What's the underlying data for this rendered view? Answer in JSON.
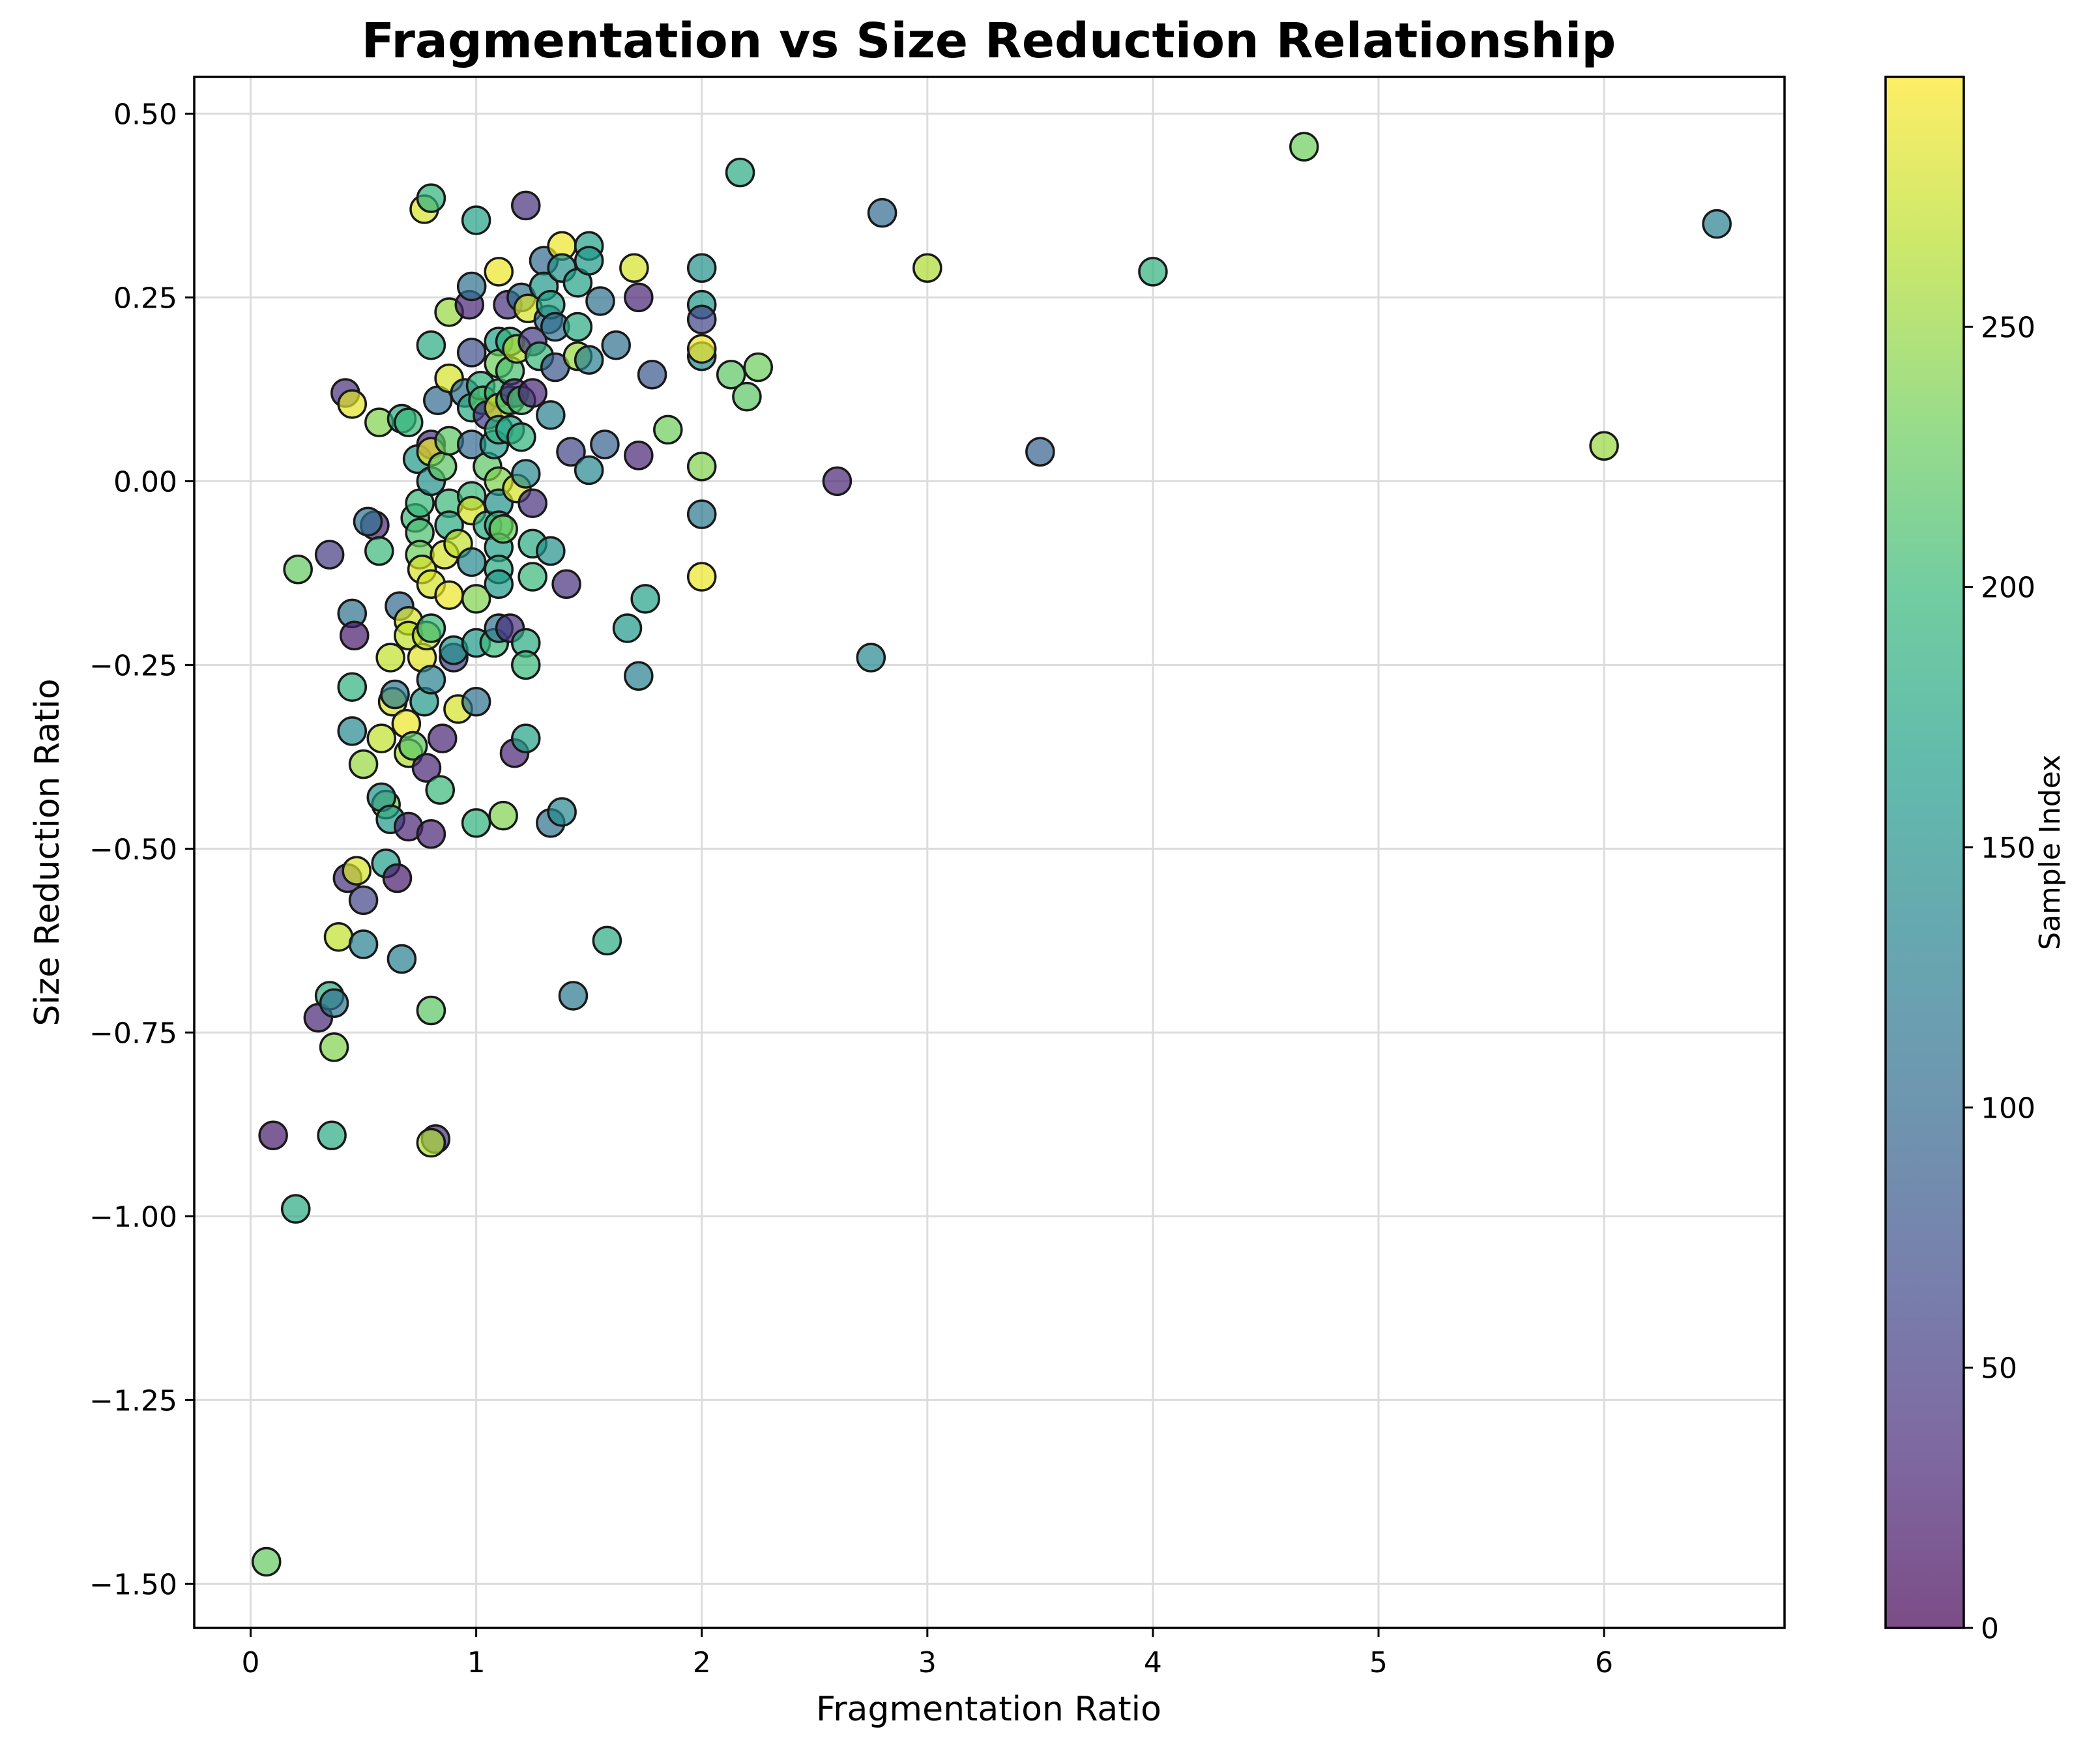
{
  "chart_data": {
    "type": "scatter",
    "title": "Fragmentation vs Size Reduction Relationship",
    "xlabel": "Fragmentation Ratio",
    "ylabel": "Size Reduction Ratio",
    "xlim": [
      -0.25,
      6.8
    ],
    "ylim": [
      -1.56,
      0.55
    ],
    "xticks": [
      0,
      1,
      2,
      3,
      4,
      5,
      6
    ],
    "xtick_labels": [
      "0",
      "1",
      "2",
      "3",
      "4",
      "5",
      "6"
    ],
    "yticks": [
      0.5,
      0.25,
      0.0,
      -0.25,
      -0.5,
      -0.75,
      -1.0,
      -1.25,
      -1.5
    ],
    "ytick_labels": [
      "0.50",
      "0.25",
      "0.00",
      "−0.25",
      "−0.50",
      "−0.75",
      "−1.00",
      "−1.25",
      "−1.50"
    ],
    "grid": true,
    "colormap": "viridis",
    "colormap_stops": [
      "#440154",
      "#482878",
      "#3e4989",
      "#31688e",
      "#26828e",
      "#1f9e89",
      "#35b779",
      "#6ece58",
      "#b5de2b",
      "#fde725"
    ],
    "colorbar": {
      "label": "Sample Index",
      "range": [
        0,
        298
      ],
      "ticks": [
        0,
        50,
        100,
        150,
        200,
        250
      ],
      "tick_labels": [
        "0",
        "50",
        "100",
        "150",
        "200",
        "250"
      ]
    },
    "point_fields": [
      "fragmentation_ratio",
      "size_reduction_ratio",
      "sample_index"
    ],
    "points": [
      [
        0.07,
        -1.47,
        225
      ],
      [
        0.1,
        -0.89,
        20
      ],
      [
        0.2,
        -0.99,
        180
      ],
      [
        0.21,
        -0.12,
        225
      ],
      [
        0.3,
        -0.73,
        30
      ],
      [
        0.35,
        -0.7,
        185
      ],
      [
        0.36,
        -0.89,
        180
      ],
      [
        0.37,
        -0.71,
        110
      ],
      [
        0.37,
        -0.77,
        240
      ],
      [
        0.39,
        -0.62,
        270
      ],
      [
        0.35,
        -0.1,
        50
      ],
      [
        0.42,
        0.12,
        40
      ],
      [
        0.45,
        0.105,
        285
      ],
      [
        0.45,
        -0.18,
        110
      ],
      [
        0.46,
        -0.21,
        20
      ],
      [
        0.45,
        -0.34,
        140
      ],
      [
        0.45,
        -0.28,
        190
      ],
      [
        0.43,
        -0.54,
        40
      ],
      [
        0.47,
        -0.53,
        280
      ],
      [
        0.5,
        -0.57,
        60
      ],
      [
        0.5,
        -0.63,
        130
      ],
      [
        0.5,
        -0.385,
        250
      ],
      [
        0.55,
        -0.06,
        30
      ],
      [
        0.52,
        -0.055,
        110
      ],
      [
        0.57,
        -0.095,
        200
      ],
      [
        0.57,
        0.08,
        240
      ],
      [
        0.58,
        -0.35,
        270
      ],
      [
        0.6,
        -0.44,
        240
      ],
      [
        0.58,
        -0.43,
        150
      ],
      [
        0.6,
        -0.52,
        165
      ],
      [
        0.62,
        -0.46,
        160
      ],
      [
        0.65,
        -0.54,
        20
      ],
      [
        0.63,
        -0.3,
        280
      ],
      [
        0.62,
        -0.24,
        270
      ],
      [
        0.64,
        -0.29,
        120
      ],
      [
        0.66,
        -0.17,
        100
      ],
      [
        0.67,
        -0.65,
        130
      ],
      [
        0.67,
        0.085,
        180
      ],
      [
        0.7,
        0.08,
        200
      ],
      [
        0.7,
        -0.19,
        280
      ],
      [
        0.7,
        -0.21,
        270
      ],
      [
        0.69,
        -0.33,
        290
      ],
      [
        0.7,
        -0.37,
        260
      ],
      [
        0.72,
        -0.36,
        220
      ],
      [
        0.7,
        -0.47,
        30
      ],
      [
        0.73,
        -0.05,
        200
      ],
      [
        0.74,
        0.03,
        160
      ],
      [
        0.75,
        -0.03,
        200
      ],
      [
        0.75,
        -0.07,
        210
      ],
      [
        0.75,
        -0.1,
        230
      ],
      [
        0.76,
        -0.12,
        280
      ],
      [
        0.76,
        -0.24,
        285
      ],
      [
        0.77,
        -0.3,
        160
      ],
      [
        0.78,
        -0.21,
        270
      ],
      [
        0.78,
        -0.39,
        30
      ],
      [
        0.77,
        0.37,
        280
      ],
      [
        0.8,
        0.385,
        190
      ],
      [
        0.8,
        0.185,
        180
      ],
      [
        0.8,
        0.05,
        40
      ],
      [
        0.8,
        0.04,
        290
      ],
      [
        0.8,
        0.0,
        150
      ],
      [
        0.8,
        -0.14,
        280
      ],
      [
        0.8,
        -0.2,
        200
      ],
      [
        0.8,
        -0.27,
        130
      ],
      [
        0.8,
        -0.48,
        30
      ],
      [
        0.8,
        -0.72,
        220
      ],
      [
        0.82,
        -0.895,
        40
      ],
      [
        0.8,
        -0.9,
        260
      ],
      [
        0.83,
        0.11,
        100
      ],
      [
        0.84,
        -0.42,
        200
      ],
      [
        0.85,
        -0.35,
        30
      ],
      [
        0.85,
        0.02,
        220
      ],
      [
        0.86,
        -0.1,
        280
      ],
      [
        0.88,
        0.23,
        250
      ],
      [
        0.88,
        0.14,
        280
      ],
      [
        0.88,
        0.055,
        220
      ],
      [
        0.88,
        -0.03,
        200
      ],
      [
        0.88,
        -0.06,
        180
      ],
      [
        0.88,
        -0.155,
        290
      ],
      [
        0.9,
        -0.24,
        60
      ],
      [
        0.9,
        -0.23,
        150
      ],
      [
        0.92,
        -0.085,
        270
      ],
      [
        0.92,
        -0.31,
        280
      ],
      [
        0.95,
        0.12,
        110
      ],
      [
        0.97,
        0.24,
        30
      ],
      [
        0.98,
        0.265,
        110
      ],
      [
        0.98,
        0.175,
        70
      ],
      [
        0.98,
        0.1,
        180
      ],
      [
        0.98,
        0.05,
        100
      ],
      [
        0.98,
        -0.02,
        200
      ],
      [
        0.98,
        -0.04,
        280
      ],
      [
        0.98,
        -0.11,
        140
      ],
      [
        1.0,
        0.355,
        170
      ],
      [
        1.0,
        -0.16,
        240
      ],
      [
        1.0,
        -0.22,
        160
      ],
      [
        1.0,
        -0.3,
        110
      ],
      [
        1.0,
        -0.465,
        190
      ],
      [
        1.02,
        0.13,
        190
      ],
      [
        1.03,
        0.11,
        210
      ],
      [
        1.05,
        0.09,
        50
      ],
      [
        1.05,
        0.02,
        220
      ],
      [
        1.05,
        -0.06,
        180
      ],
      [
        1.08,
        -0.22,
        200
      ],
      [
        1.08,
        0.05,
        160
      ],
      [
        1.1,
        0.285,
        290
      ],
      [
        1.1,
        0.19,
        170
      ],
      [
        1.1,
        0.16,
        230
      ],
      [
        1.1,
        0.12,
        200
      ],
      [
        1.1,
        0.1,
        280
      ],
      [
        1.1,
        0.07,
        190
      ],
      [
        1.1,
        0.0,
        240
      ],
      [
        1.1,
        -0.03,
        150
      ],
      [
        1.1,
        -0.06,
        200
      ],
      [
        1.1,
        -0.09,
        170
      ],
      [
        1.1,
        -0.12,
        180
      ],
      [
        1.1,
        -0.14,
        160
      ],
      [
        1.1,
        -0.2,
        110
      ],
      [
        1.12,
        -0.455,
        240
      ],
      [
        1.12,
        -0.065,
        230
      ],
      [
        1.14,
        0.24,
        40
      ],
      [
        1.15,
        0.19,
        190
      ],
      [
        1.15,
        0.15,
        210
      ],
      [
        1.15,
        0.11,
        200
      ],
      [
        1.15,
        0.07,
        170
      ],
      [
        1.15,
        -0.2,
        40
      ],
      [
        1.17,
        -0.37,
        30
      ],
      [
        1.17,
        0.12,
        40
      ],
      [
        1.18,
        0.18,
        260
      ],
      [
        1.18,
        -0.01,
        280
      ],
      [
        1.2,
        0.25,
        110
      ],
      [
        1.2,
        0.11,
        210
      ],
      [
        1.2,
        0.06,
        190
      ],
      [
        1.22,
        0.375,
        40
      ],
      [
        1.22,
        0.01,
        140
      ],
      [
        1.22,
        -0.22,
        180
      ],
      [
        1.22,
        -0.25,
        200
      ],
      [
        1.22,
        -0.35,
        170
      ],
      [
        1.23,
        0.235,
        280
      ],
      [
        1.25,
        0.19,
        50
      ],
      [
        1.25,
        0.12,
        30
      ],
      [
        1.25,
        -0.03,
        40
      ],
      [
        1.25,
        -0.085,
        180
      ],
      [
        1.25,
        -0.13,
        200
      ],
      [
        1.28,
        0.17,
        200
      ],
      [
        1.3,
        0.3,
        100
      ],
      [
        1.3,
        0.265,
        160
      ],
      [
        1.32,
        0.22,
        100
      ],
      [
        1.33,
        0.09,
        130
      ],
      [
        1.33,
        -0.095,
        150
      ],
      [
        1.33,
        -0.465,
        110
      ],
      [
        1.33,
        0.24,
        170
      ],
      [
        1.35,
        0.21,
        110
      ],
      [
        1.35,
        0.155,
        80
      ],
      [
        1.38,
        0.32,
        290
      ],
      [
        1.38,
        0.29,
        150
      ],
      [
        1.38,
        -0.45,
        140
      ],
      [
        1.4,
        -0.14,
        40
      ],
      [
        1.42,
        0.04,
        60
      ],
      [
        1.43,
        -0.7,
        120
      ],
      [
        1.45,
        0.27,
        170
      ],
      [
        1.45,
        0.21,
        180
      ],
      [
        1.45,
        0.17,
        250
      ],
      [
        1.5,
        0.32,
        170
      ],
      [
        1.5,
        0.3,
        160
      ],
      [
        1.5,
        0.165,
        130
      ],
      [
        1.5,
        0.015,
        140
      ],
      [
        1.55,
        0.245,
        110
      ],
      [
        1.57,
        0.05,
        90
      ],
      [
        1.58,
        -0.625,
        180
      ],
      [
        1.62,
        0.185,
        110
      ],
      [
        1.67,
        -0.2,
        160
      ],
      [
        1.7,
        0.29,
        280
      ],
      [
        1.72,
        0.25,
        30
      ],
      [
        1.72,
        0.035,
        30
      ],
      [
        1.72,
        -0.265,
        130
      ],
      [
        1.75,
        -0.16,
        170
      ],
      [
        1.78,
        0.145,
        80
      ],
      [
        1.85,
        0.07,
        230
      ],
      [
        2.0,
        0.29,
        150
      ],
      [
        2.0,
        0.24,
        160
      ],
      [
        2.0,
        0.22,
        60
      ],
      [
        2.0,
        0.17,
        140
      ],
      [
        2.0,
        0.18,
        290
      ],
      [
        2.0,
        0.02,
        240
      ],
      [
        2.0,
        -0.045,
        120
      ],
      [
        2.0,
        -0.13,
        290
      ],
      [
        2.13,
        0.145,
        220
      ],
      [
        2.17,
        0.42,
        180
      ],
      [
        2.2,
        0.115,
        220
      ],
      [
        2.25,
        0.155,
        230
      ],
      [
        2.6,
        0.0,
        30
      ],
      [
        2.75,
        -0.24,
        140
      ],
      [
        2.8,
        0.365,
        100
      ],
      [
        3.0,
        0.29,
        260
      ],
      [
        3.5,
        0.04,
        90
      ],
      [
        4.0,
        0.285,
        190
      ],
      [
        4.67,
        0.455,
        230
      ],
      [
        6.0,
        0.048,
        250
      ],
      [
        6.5,
        0.35,
        130
      ]
    ]
  }
}
